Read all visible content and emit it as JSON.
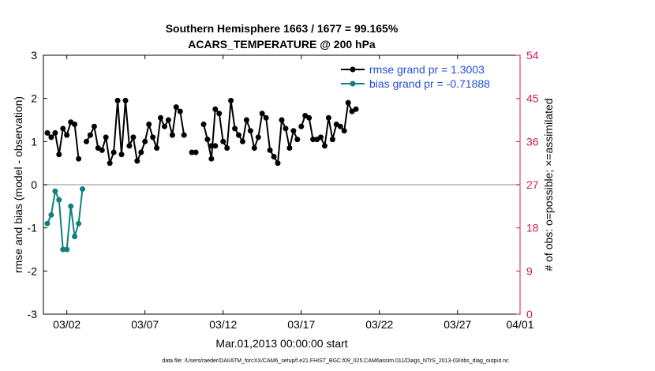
{
  "colors": {
    "rmse": "#000000",
    "bias": "#0f7f7f",
    "obs": "#d01c5b",
    "legend_text": "#1f4fd8",
    "zero_line": "#b3b3b3"
  },
  "chart_data": {
    "type": "line",
    "title_line1": "Southern Hemisphere 1663 / 1677 = 99.165%",
    "title_line2": "ACARS_TEMPERATURE @ 200 hPa",
    "xlabel": "Mar.01,2013 00:00:00 start",
    "ylabel": "rmse and bias (model - observation)",
    "y2label": "# of obs: o=possible; ×=assimilated",
    "footnote": "data file: /Users/raeder/DAI/ATM_forcXX/CAM6_setup/f.e21.FHIST_BGC.f09_025.CAM6assim.011/Diags_NTrS_2013-03/obs_diag_output.nc",
    "xlim": [
      0.5,
      31.0
    ],
    "ylim": [
      -3,
      3
    ],
    "y2lim": [
      0,
      54
    ],
    "xticks": [
      2,
      7,
      12,
      17,
      22,
      27,
      31
    ],
    "xtick_labels": [
      "03/02",
      "03/07",
      "03/12",
      "03/17",
      "03/22",
      "03/27",
      "04/01"
    ],
    "yticks": [
      "-3",
      "-2",
      "-1",
      "0",
      "1",
      "2",
      "3"
    ],
    "y2ticks": [
      "0",
      "9",
      "18",
      "27",
      "36",
      "45",
      "54"
    ],
    "legend": [
      {
        "name": "rmse",
        "label": "rmse grand pr = 1.3003"
      },
      {
        "name": "bias",
        "label": "bias grand pr = -0.71888"
      }
    ],
    "series": [
      {
        "name": "rmse",
        "segments": [
          {
            "x": [
              0.75,
              1.0,
              1.25,
              1.5,
              1.75,
              2.0,
              2.25,
              2.5,
              2.75
            ],
            "y": [
              1.2,
              1.1,
              1.2,
              0.7,
              1.3,
              1.15,
              1.45,
              1.4,
              0.6
            ]
          },
          {
            "x": [
              3.25,
              3.5,
              3.75,
              4.0,
              4.25,
              4.5,
              4.75,
              5.0,
              5.25,
              5.5,
              5.75,
              6.0,
              6.25,
              6.5,
              6.75,
              7.0,
              7.25,
              7.5,
              7.75,
              8.0,
              8.25,
              8.5,
              8.75,
              9.0,
              9.25,
              9.5
            ],
            "y": [
              1.0,
              1.15,
              1.35,
              0.85,
              0.8,
              1.1,
              0.5,
              0.75,
              1.95,
              0.7,
              1.95,
              0.9,
              1.1,
              0.55,
              0.75,
              1.0,
              1.4,
              1.1,
              0.85,
              1.55,
              1.35,
              1.5,
              1.15,
              1.8,
              1.7,
              1.15
            ]
          },
          {
            "x": [
              10.0,
              10.25
            ],
            "y": [
              0.75,
              0.75
            ]
          },
          {
            "x": [
              10.75,
              11.0,
              11.25,
              11.5,
              11.75,
              12.0,
              12.25,
              12.5,
              12.75,
              13.0,
              13.25,
              13.5,
              13.75,
              14.0,
              14.25,
              14.5,
              14.75,
              15.0,
              15.25,
              15.5,
              15.75,
              16.0,
              16.25,
              16.5,
              16.75
            ],
            "y": [
              1.4,
              1.05,
              0.6,
              1.75,
              1.65,
              1.0,
              0.85,
              1.95,
              1.3,
              1.15,
              1.0,
              1.5,
              1.25,
              0.85,
              1.1,
              1.65,
              1.55,
              0.8,
              0.65,
              0.5,
              1.5,
              1.3,
              0.85,
              1.25,
              1.05
            ]
          },
          {
            "x": [
              17.0,
              17.25,
              17.5,
              17.75,
              18.0,
              18.25,
              18.5,
              18.75,
              19.0,
              19.25,
              19.5,
              19.75,
              20.0,
              20.25,
              20.5
            ],
            "y": [
              1.35,
              1.6,
              1.55,
              1.05,
              1.05,
              1.1,
              0.9,
              1.55,
              1.05,
              1.4,
              1.35,
              1.25,
              1.9,
              1.7,
              1.75
            ]
          },
          {
            "x": [
              11.25,
              11.5
            ],
            "y": [
              0.9,
              0.9
            ]
          }
        ]
      },
      {
        "name": "bias",
        "segments": [
          {
            "x": [
              0.75,
              1.0,
              1.25,
              1.5,
              1.75,
              2.0,
              2.25,
              2.5,
              2.75,
              3.0
            ],
            "y": [
              -0.9,
              -0.7,
              -0.15,
              -0.35,
              -1.5,
              -1.5,
              -0.5,
              -1.2,
              -0.9,
              -0.1
            ]
          }
        ]
      }
    ]
  }
}
